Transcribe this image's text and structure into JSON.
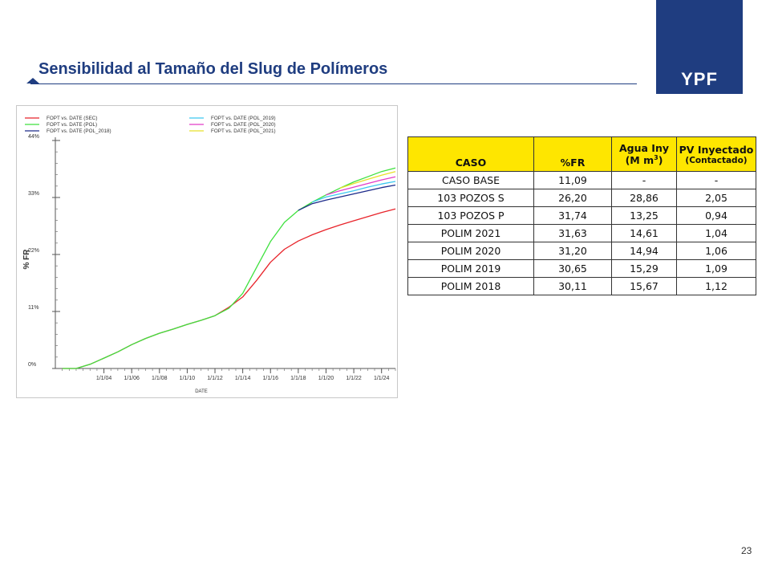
{
  "header": {
    "title": "Sensibilidad al Tamaño del Slug de Polímeros",
    "logo_text": "YPF",
    "brand_color": "#1f3d80"
  },
  "page_number": "23",
  "table": {
    "header_color": "#fee600",
    "headers": {
      "caso": "CASO",
      "fr": "%FR",
      "agua_top": "Agua Iny",
      "agua_bottom_pre": "(M m",
      "agua_sup": "3",
      "agua_bottom_post": ")",
      "pv_top": "PV Inyectado",
      "pv_bottom": "(Contactado)"
    },
    "rows": [
      {
        "caso": "CASO BASE",
        "fr": "11,09",
        "agua": "-",
        "pv": "-"
      },
      {
        "caso": "103 POZOS S",
        "fr": "26,20",
        "agua": "28,86",
        "pv": "2,05"
      },
      {
        "caso": "103 POZOS P",
        "fr": "31,74",
        "agua": "13,25",
        "pv": "0,94"
      },
      {
        "caso": "POLIM 2021",
        "fr": "31,63",
        "agua": "14,61",
        "pv": "1,04"
      },
      {
        "caso": "POLIM 2020",
        "fr": "31,20",
        "agua": "14,94",
        "pv": "1,06"
      },
      {
        "caso": "POLIM 2019",
        "fr": "30,65",
        "agua": "15,29",
        "pv": "1,09"
      },
      {
        "caso": "POLIM 2018",
        "fr": "30,11",
        "agua": "15,67",
        "pv": "1,12"
      }
    ]
  },
  "chart_data": {
    "type": "line",
    "xlabel": "DATE",
    "ylabel": "% FR",
    "y_ticks": [
      0,
      11,
      22,
      33,
      44
    ],
    "y_tick_labels": [
      "0%",
      "11%",
      "22%",
      "33%",
      "44%"
    ],
    "x_ticks": [
      2004,
      2006,
      2008,
      2010,
      2012,
      2014,
      2016,
      2018,
      2020,
      2022,
      2024
    ],
    "x_tick_labels": [
      "1/1/04",
      "1/1/06",
      "1/1/08",
      "1/1/10",
      "1/1/12",
      "1/1/14",
      "1/1/16",
      "1/1/18",
      "1/1/20",
      "1/1/22",
      "1/1/24"
    ],
    "xlim": [
      2000.5,
      2025
    ],
    "ylim": [
      0,
      44
    ],
    "legend_placement": "top",
    "grid": false,
    "series": [
      {
        "name": "FOPT vs. DATE (SEC)",
        "color": "#e8232a",
        "points": [
          [
            2001,
            0
          ],
          [
            2002,
            0
          ],
          [
            2003,
            0.8
          ],
          [
            2004,
            2
          ],
          [
            2005,
            3.2
          ],
          [
            2006,
            4.6
          ],
          [
            2007,
            5.8
          ],
          [
            2008,
            6.8
          ],
          [
            2009,
            7.6
          ],
          [
            2010,
            8.5
          ],
          [
            2011,
            9.3
          ],
          [
            2012,
            10.2
          ],
          [
            2013,
            11.8
          ],
          [
            2014,
            13.8
          ],
          [
            2015,
            17
          ],
          [
            2016,
            20.5
          ],
          [
            2017,
            23
          ],
          [
            2018,
            24.6
          ],
          [
            2019,
            25.8
          ],
          [
            2020,
            26.8
          ],
          [
            2021,
            27.7
          ],
          [
            2022,
            28.5
          ],
          [
            2023,
            29.3
          ],
          [
            2024,
            30.1
          ],
          [
            2025,
            30.8
          ]
        ]
      },
      {
        "name": "FOPT vs. DATE (POL)",
        "color": "#3fe13f",
        "points": [
          [
            2001,
            0
          ],
          [
            2002,
            0
          ],
          [
            2003,
            0.8
          ],
          [
            2004,
            2
          ],
          [
            2005,
            3.2
          ],
          [
            2006,
            4.6
          ],
          [
            2007,
            5.8
          ],
          [
            2008,
            6.8
          ],
          [
            2009,
            7.6
          ],
          [
            2010,
            8.5
          ],
          [
            2011,
            9.3
          ],
          [
            2012,
            10.2
          ],
          [
            2013,
            11.6
          ],
          [
            2014,
            14.5
          ],
          [
            2015,
            19.5
          ],
          [
            2016,
            24.5
          ],
          [
            2017,
            28.2
          ],
          [
            2018,
            30.5
          ],
          [
            2019,
            32.1
          ],
          [
            2020,
            33.5
          ],
          [
            2021,
            34.8
          ],
          [
            2022,
            36
          ],
          [
            2023,
            37
          ],
          [
            2024,
            38
          ],
          [
            2025,
            38.7
          ]
        ]
      },
      {
        "name": "FOPT vs. DATE (POL_2018)",
        "color": "#1c2a8a",
        "points": [
          [
            2018,
            30.5
          ],
          [
            2019,
            31.8
          ],
          [
            2020,
            32.5
          ],
          [
            2021,
            33.1
          ],
          [
            2022,
            33.7
          ],
          [
            2023,
            34.3
          ],
          [
            2024,
            34.9
          ],
          [
            2025,
            35.4
          ]
        ]
      },
      {
        "name": "FOPT vs. DATE (POL_2019)",
        "color": "#3cc8f0",
        "points": [
          [
            2019,
            32.1
          ],
          [
            2020,
            33.1
          ],
          [
            2021,
            33.7
          ],
          [
            2022,
            34.3
          ],
          [
            2023,
            35
          ],
          [
            2024,
            35.6
          ],
          [
            2025,
            36.1
          ]
        ]
      },
      {
        "name": "FOPT vs. DATE (POL_2020)",
        "color": "#e23cc8",
        "points": [
          [
            2020,
            33.5
          ],
          [
            2021,
            34.3
          ],
          [
            2022,
            35
          ],
          [
            2023,
            35.7
          ],
          [
            2024,
            36.4
          ],
          [
            2025,
            37
          ]
        ]
      },
      {
        "name": "FOPT vs. DATE (POL_2021)",
        "color": "#e8e02a",
        "points": [
          [
            2021,
            34.8
          ],
          [
            2022,
            35.7
          ],
          [
            2023,
            36.5
          ],
          [
            2024,
            37.3
          ],
          [
            2025,
            38
          ]
        ]
      }
    ]
  }
}
